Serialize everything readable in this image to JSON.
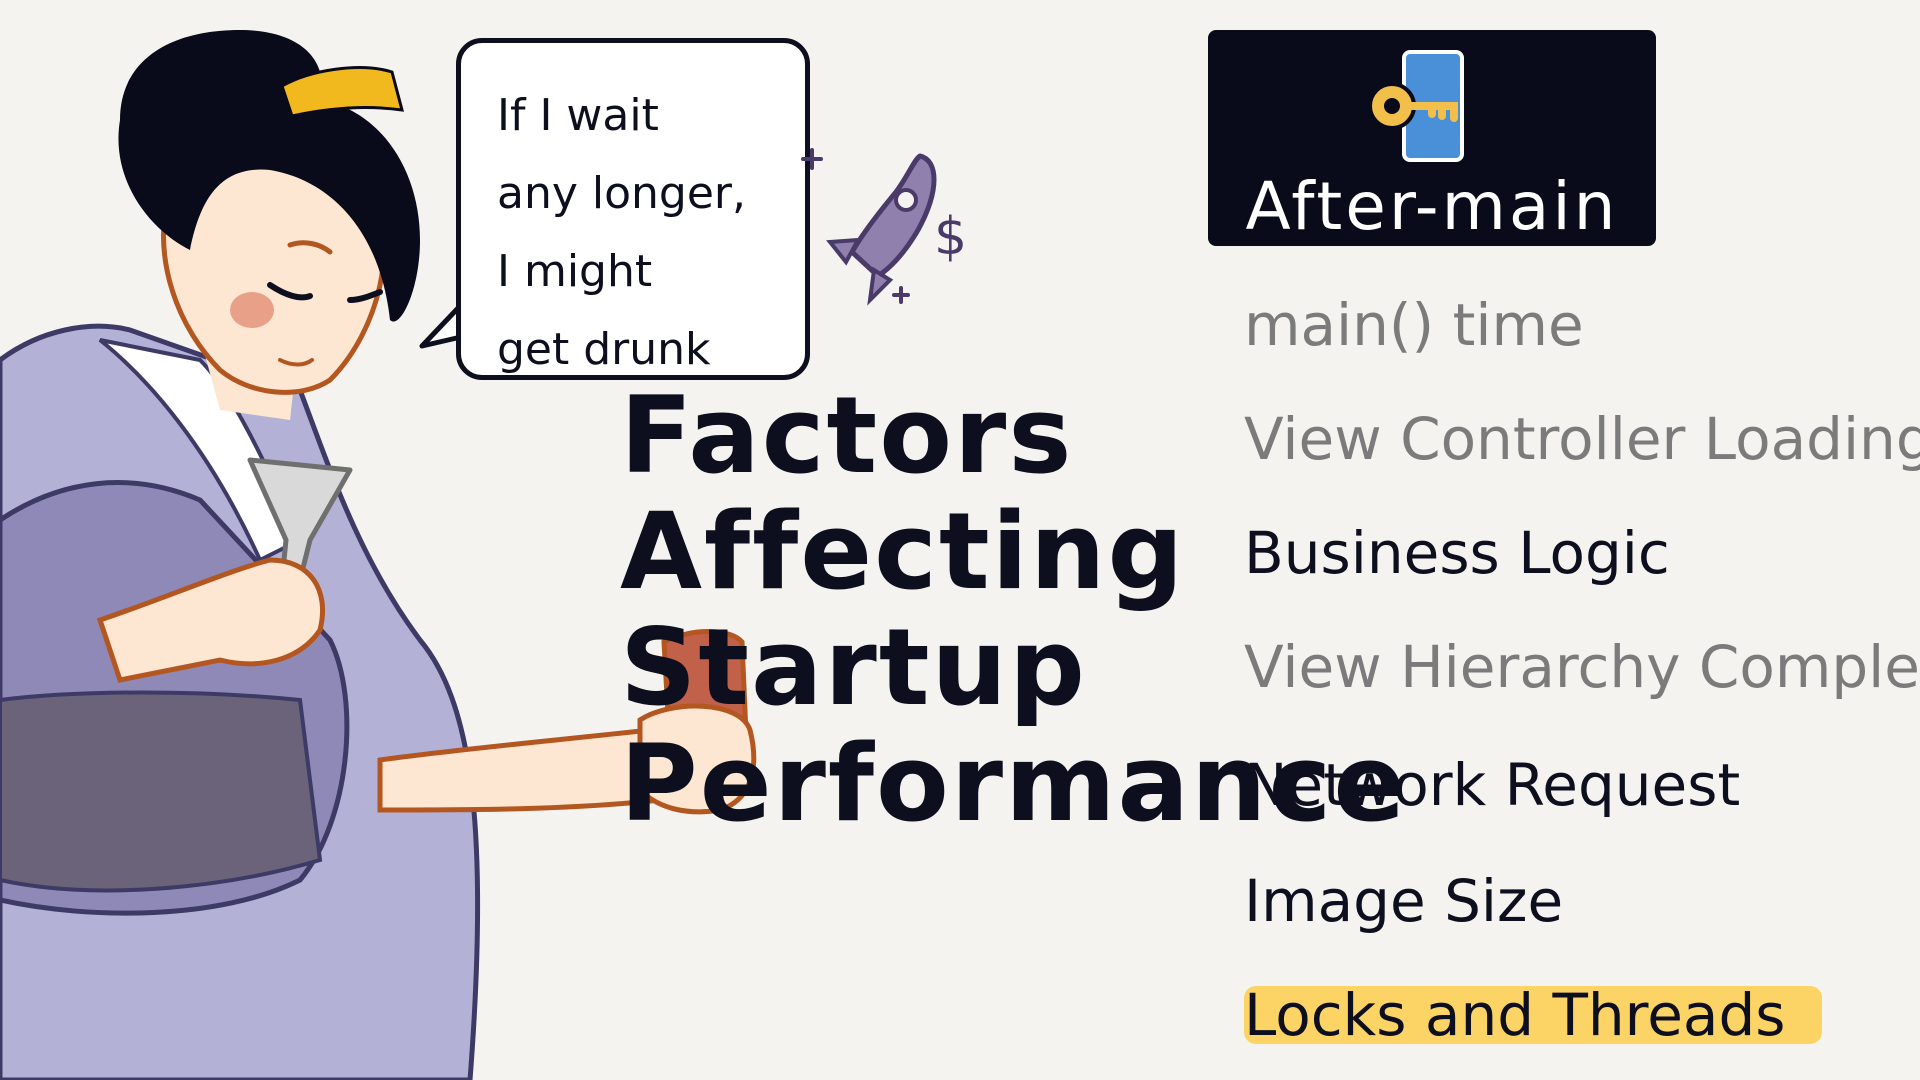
{
  "speech_bubble": {
    "lines": [
      "If I wait",
      "any longer,",
      "I might",
      "get drunk"
    ]
  },
  "title": {
    "lines": [
      "Factors",
      "Affecting",
      "Startup",
      "Performance"
    ]
  },
  "panel": {
    "icon": "key-document-icon",
    "title": "After-main"
  },
  "factors": [
    {
      "label": "main() time",
      "style": "muted"
    },
    {
      "label": "View Controller Loading",
      "style": "muted"
    },
    {
      "label": "Business Logic",
      "style": "dark"
    },
    {
      "label": "View Hierarchy Complex",
      "style": "muted"
    },
    {
      "label": "Network Request",
      "style": "dark"
    },
    {
      "label": "Image Size",
      "style": "dark"
    },
    {
      "label": "Locks and Threads",
      "style": "highlighted"
    }
  ],
  "colors": {
    "background": "#f5f3f0",
    "ink": "#0d0f1e",
    "muted_text": "#7b7b7b",
    "panel": "#0a0b1a",
    "highlight": "#fbd465",
    "kimono": "#b4b1d6",
    "rocket": "#6d5d8e",
    "cup": "#c2614a",
    "hair_ornament": "#f2b91f"
  }
}
